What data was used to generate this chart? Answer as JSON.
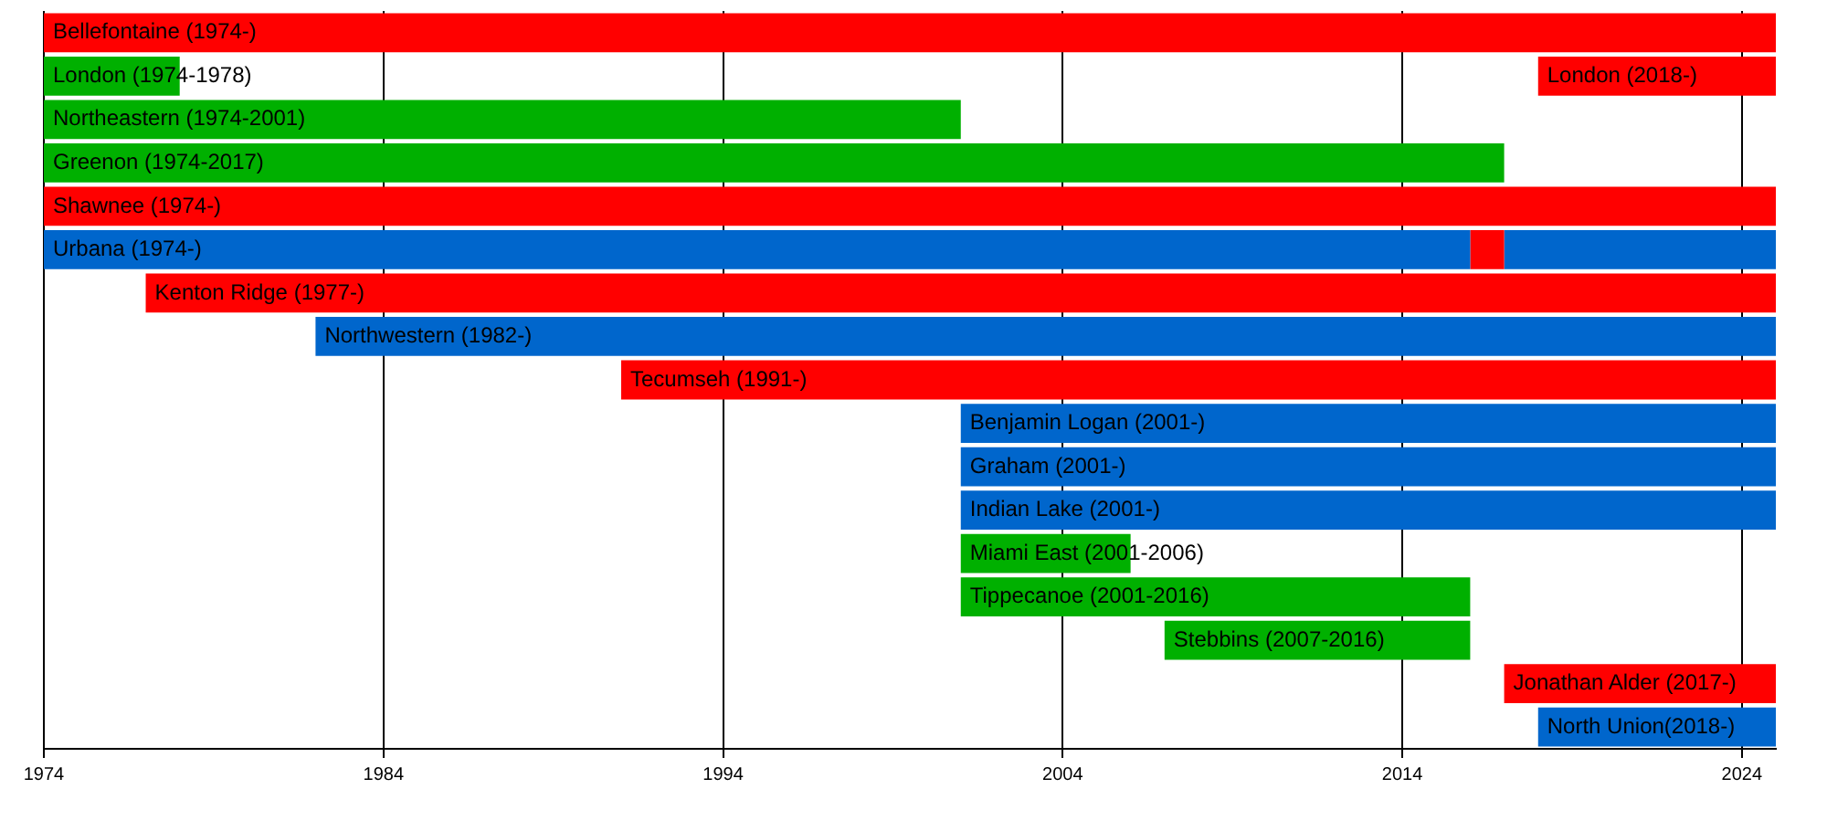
{
  "chart_data": {
    "type": "bar",
    "orientation": "horizontal",
    "grid": "x",
    "legend": false,
    "categories": [
      "Bellefontaine (1974-)",
      "London (1974-1978)",
      "Northeastern (1974-2001)",
      "Greenon (1974-2017)",
      "Shawnee (1974-)",
      "Urbana (1974-)",
      "Kenton Ridge (1977-)",
      "Northwestern (1982-)",
      "Tecumseh (1991-)",
      "Benjamin Logan (2001-)",
      "Graham (2001-)",
      "Indian Lake (2001-)",
      "Miami East (2001-2006)",
      "Tippecanoe (2001-2016)",
      "Stebbins (2007-2016)",
      "Jonathan Alder (2017-)",
      "North Union(2018-)"
    ],
    "xlim": [
      1974,
      2025
    ],
    "xticks": [
      1974,
      1984,
      1994,
      2004,
      2014,
      2024
    ],
    "annotations": [
      {
        "text": "London (2018-)",
        "x": 2018,
        "y": "London (1974-1978)"
      }
    ],
    "series": [
      {
        "base": [
          1974,
          1974,
          1974,
          1974,
          1974,
          1974,
          1977,
          1982,
          1991,
          2001,
          2001,
          2001,
          2001,
          2001,
          2007,
          2017,
          2018
        ],
        "values": [
          51,
          4,
          27,
          43,
          51,
          42,
          48,
          43,
          34,
          24,
          24,
          24,
          5,
          15,
          9,
          8,
          7
        ],
        "colors": [
          "#ff0000",
          "#00b000",
          "#00b000",
          "#00b000",
          "#ff0000",
          "#0066cc",
          "#ff0000",
          "#0066cc",
          "#ff0000",
          "#0066cc",
          "#0066cc",
          "#0066cc",
          "#00b000",
          "#00b000",
          "#00b000",
          "#ff0000",
          "#0066cc"
        ]
      },
      {
        "base": [
          null,
          2018,
          null,
          null,
          null,
          2016,
          null,
          null,
          null,
          null,
          null,
          null,
          null,
          null,
          null,
          null,
          null
        ],
        "values": [
          null,
          7,
          null,
          null,
          null,
          1,
          null,
          null,
          null,
          null,
          null,
          null,
          null,
          null,
          null,
          null,
          null
        ],
        "color": "#ff0000"
      },
      {
        "base": [
          null,
          null,
          null,
          null,
          null,
          2017,
          null,
          null,
          null,
          null,
          null,
          null,
          null,
          null,
          null,
          null,
          null
        ],
        "values": [
          null,
          null,
          null,
          null,
          null,
          8,
          null,
          null,
          null,
          null,
          null,
          null,
          null,
          null,
          null,
          null,
          null
        ],
        "color": "#0066cc"
      }
    ]
  }
}
